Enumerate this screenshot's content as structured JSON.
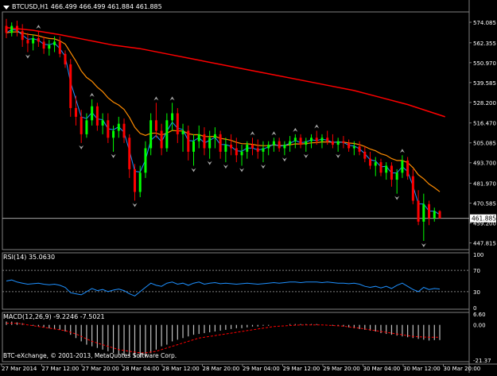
{
  "colors": {
    "background": "#000000",
    "grid": "#7f7f7f",
    "bull": "#00ff00",
    "bear": "#ff0000",
    "axis_text": "#ffffff",
    "ma_fast": "#1e90ff",
    "ma_mid": "#ff8c00",
    "ma_slow": "#ff0000",
    "rsi": "#1e90ff",
    "macd_hist": "#c0c0c0",
    "macd_signal": "#ff0000",
    "fractal": "#a9a9a9"
  },
  "main": {
    "dropdown_icon": "triangle-down-icon",
    "header": "BTCUSD,H1  466.499 466.499 461.884 461.885",
    "bid_label": "461.885"
  },
  "rsi": {
    "label": "RSI(14) 35.0630"
  },
  "macd": {
    "label": "MACD(12,26,9) -9.2246 -7.5021"
  },
  "footer": {
    "copyright": "BTC-eXchange, © 2001-2013, MetaQuotes Software Corp."
  },
  "chart_data": [
    {
      "type": "candlestick",
      "title": "BTCUSD,H1",
      "ohlc_readout": {
        "open": 466.499,
        "high": 466.499,
        "low": 461.884,
        "close": 461.885
      },
      "ylim": [
        444,
        580
      ],
      "y_ticks": [
        "574.085",
        "562.355",
        "550.970",
        "539.585",
        "528.200",
        "516.470",
        "505.085",
        "493.700",
        "481.970",
        "470.585",
        "459.200",
        "447.815"
      ],
      "bid": 461.885,
      "x_labels": [
        "27 Mar 2014",
        "27 Mar 12:00",
        "27 Mar 20:00",
        "28 Mar 04:00",
        "28 Mar 12:00",
        "28 Mar 20:00",
        "29 Mar 04:00",
        "29 Mar 12:00",
        "29 Mar 20:00",
        "30 Mar 04:00",
        "30 Mar 12:00",
        "30 Mar 20:00"
      ],
      "candles": [
        [
          572,
          576,
          565,
          568
        ],
        [
          568,
          574,
          566,
          572
        ],
        [
          572,
          575,
          566,
          569
        ],
        [
          569,
          573,
          560,
          564
        ],
        [
          564,
          568,
          557,
          562
        ],
        [
          562,
          567,
          558,
          565
        ],
        [
          565,
          569,
          560,
          563
        ],
        [
          563,
          566,
          556,
          559
        ],
        [
          559,
          564,
          555,
          561
        ],
        [
          561,
          566,
          557,
          563
        ],
        [
          563,
          566,
          554,
          556
        ],
        [
          556,
          558,
          548,
          550
        ],
        [
          550,
          553,
          520,
          525
        ],
        [
          525,
          532,
          515,
          520
        ],
        [
          520,
          524,
          505,
          510
        ],
        [
          510,
          522,
          508,
          518
        ],
        [
          518,
          530,
          515,
          526
        ],
        [
          526,
          528,
          512,
          515
        ],
        [
          515,
          522,
          510,
          518
        ],
        [
          518,
          522,
          505,
          508
        ],
        [
          508,
          515,
          500,
          512
        ],
        [
          512,
          520,
          508,
          516
        ],
        [
          516,
          519,
          505,
          508
        ],
        [
          508,
          510,
          485,
          490
        ],
        [
          490,
          493,
          472,
          477
        ],
        [
          477,
          492,
          474,
          488
        ],
        [
          488,
          506,
          485,
          502
        ],
        [
          502,
          522,
          498,
          518
        ],
        [
          518,
          528,
          508,
          512
        ],
        [
          512,
          516,
          498,
          502
        ],
        [
          502,
          522,
          500,
          518
        ],
        [
          518,
          528,
          512,
          522
        ],
        [
          522,
          525,
          505,
          510
        ],
        [
          510,
          516,
          500,
          512
        ],
        [
          512,
          515,
          495,
          500
        ],
        [
          500,
          510,
          492,
          506
        ],
        [
          506,
          515,
          502,
          510
        ],
        [
          510,
          514,
          498,
          502
        ],
        [
          502,
          512,
          496,
          508
        ],
        [
          508,
          514,
          502,
          510
        ],
        [
          510,
          512,
          496,
          500
        ],
        [
          500,
          508,
          494,
          504
        ],
        [
          504,
          510,
          498,
          502
        ],
        [
          502,
          508,
          494,
          498
        ],
        [
          498,
          504,
          492,
          500
        ],
        [
          500,
          506,
          496,
          504
        ],
        [
          504,
          508,
          498,
          502
        ],
        [
          502,
          507,
          496,
          500
        ],
        [
          500,
          506,
          494,
          502
        ],
        [
          502,
          506,
          498,
          504
        ],
        [
          504,
          508,
          500,
          506
        ],
        [
          506,
          508,
          500,
          502
        ],
        [
          502,
          506,
          498,
          504
        ],
        [
          504,
          509,
          500,
          506
        ],
        [
          506,
          510,
          502,
          508
        ],
        [
          508,
          510,
          502,
          504
        ],
        [
          504,
          508,
          500,
          506
        ],
        [
          506,
          510,
          502,
          508
        ],
        [
          508,
          512,
          504,
          506
        ],
        [
          506,
          510,
          502,
          508
        ],
        [
          508,
          512,
          504,
          506
        ],
        [
          506,
          510,
          502,
          504
        ],
        [
          504,
          508,
          500,
          506
        ],
        [
          506,
          509,
          502,
          505
        ],
        [
          505,
          507,
          500,
          502
        ],
        [
          502,
          506,
          498,
          503
        ],
        [
          503,
          506,
          498,
          500
        ],
        [
          500,
          503,
          494,
          496
        ],
        [
          496,
          500,
          490,
          492
        ],
        [
          492,
          497,
          486,
          494
        ],
        [
          494,
          496,
          486,
          488
        ],
        [
          488,
          494,
          484,
          492
        ],
        [
          492,
          494,
          480,
          484
        ],
        [
          484,
          490,
          476,
          488
        ],
        [
          488,
          498,
          485,
          495
        ],
        [
          495,
          497,
          484,
          486
        ],
        [
          486,
          490,
          470,
          472
        ],
        [
          472,
          478,
          458,
          460
        ],
        [
          460,
          476,
          449,
          470
        ],
        [
          470,
          472,
          458,
          462
        ],
        [
          462,
          468,
          460,
          466
        ],
        [
          466,
          466.5,
          461.9,
          461.9
        ]
      ],
      "ma_slow_points": [
        [
          0,
          571
        ],
        [
          5,
          569.5
        ],
        [
          10,
          567
        ],
        [
          15,
          564
        ],
        [
          20,
          561
        ],
        [
          25,
          559
        ],
        [
          30,
          556
        ],
        [
          35,
          553
        ],
        [
          40,
          550
        ],
        [
          45,
          547
        ],
        [
          50,
          544
        ],
        [
          55,
          541
        ],
        [
          60,
          538
        ],
        [
          65,
          535
        ],
        [
          70,
          531
        ],
        [
          75,
          527
        ],
        [
          80,
          522
        ],
        [
          82,
          520
        ]
      ]
    },
    {
      "type": "line",
      "title": "RSI(14)",
      "current": 35.063,
      "ylim": [
        0,
        100
      ],
      "y_ticks": [
        "100",
        "70",
        "30",
        "0"
      ],
      "levels": [
        70,
        30
      ],
      "values": [
        50,
        52,
        48,
        46,
        44,
        45,
        46,
        44,
        43,
        44,
        42,
        38,
        28,
        26,
        24,
        30,
        36,
        32,
        34,
        30,
        33,
        35,
        32,
        26,
        22,
        30,
        38,
        46,
        42,
        40,
        46,
        48,
        44,
        46,
        42,
        46,
        48,
        44,
        46,
        47,
        45,
        46,
        45,
        44,
        45,
        46,
        45,
        44,
        45,
        46,
        47,
        46,
        47,
        48,
        48,
        47,
        48,
        48,
        48,
        47,
        48,
        47,
        46,
        46,
        45,
        46,
        44,
        40,
        38,
        40,
        37,
        40,
        36,
        42,
        46,
        40,
        34,
        30,
        38,
        34,
        36,
        35
      ]
    },
    {
      "type": "bar",
      "title": "MACD(12,26,9)",
      "current_main": -9.2246,
      "current_signal": -7.5021,
      "ylim": [
        -21.37,
        6.6
      ],
      "y_ticks": [
        "6.60",
        "0.00",
        "-21.37"
      ],
      "histogram": [
        2,
        2,
        1.5,
        1,
        0,
        -0.5,
        -1,
        -1.5,
        -2,
        -2.5,
        -3,
        -4,
        -6,
        -8,
        -10,
        -12,
        -13,
        -14,
        -15,
        -16,
        -17,
        -18,
        -18.5,
        -19,
        -19.5,
        -20,
        -19,
        -17,
        -15,
        -13,
        -12,
        -10,
        -9,
        -8,
        -7,
        -6,
        -5.5,
        -5,
        -4.5,
        -4,
        -3.5,
        -3,
        -2.5,
        -2,
        -2,
        -1.5,
        -1,
        -1,
        -0.5,
        -0.5,
        0,
        0,
        0,
        0.5,
        0.5,
        0.5,
        0.5,
        0.5,
        0.5,
        0,
        0,
        -0.5,
        -0.5,
        -1,
        -1.5,
        -2,
        -2.5,
        -3,
        -3.5,
        -4,
        -5,
        -5.5,
        -6,
        -6.5,
        -7,
        -7.5,
        -8,
        -8.5,
        -9,
        -9.5,
        -9.2246,
        -9.2
      ],
      "signal": [
        1,
        1,
        1,
        0.5,
        0,
        -0.5,
        -1,
        -1.5,
        -2,
        -2.5,
        -3,
        -3.5,
        -4.5,
        -5.5,
        -7,
        -8.5,
        -10,
        -11,
        -12,
        -13,
        -14,
        -15,
        -15.5,
        -16,
        -16.5,
        -17,
        -17,
        -16.5,
        -16,
        -15,
        -14,
        -13,
        -12,
        -11,
        -10,
        -9,
        -8,
        -7.5,
        -7,
        -6.5,
        -6,
        -5.5,
        -5,
        -4.5,
        -4,
        -3.5,
        -3,
        -2.5,
        -2,
        -1.5,
        -1,
        -0.8,
        -0.6,
        -0.4,
        -0.2,
        -0.1,
        0,
        0,
        0,
        0,
        -0.2,
        -0.4,
        -0.6,
        -0.8,
        -1.2,
        -1.6,
        -2,
        -2.5,
        -3,
        -3.5,
        -4,
        -4.5,
        -5,
        -5.5,
        -6,
        -6.5,
        -7,
        -7.2,
        -7.4,
        -7.5,
        -7.5021,
        -7.5
      ]
    }
  ]
}
